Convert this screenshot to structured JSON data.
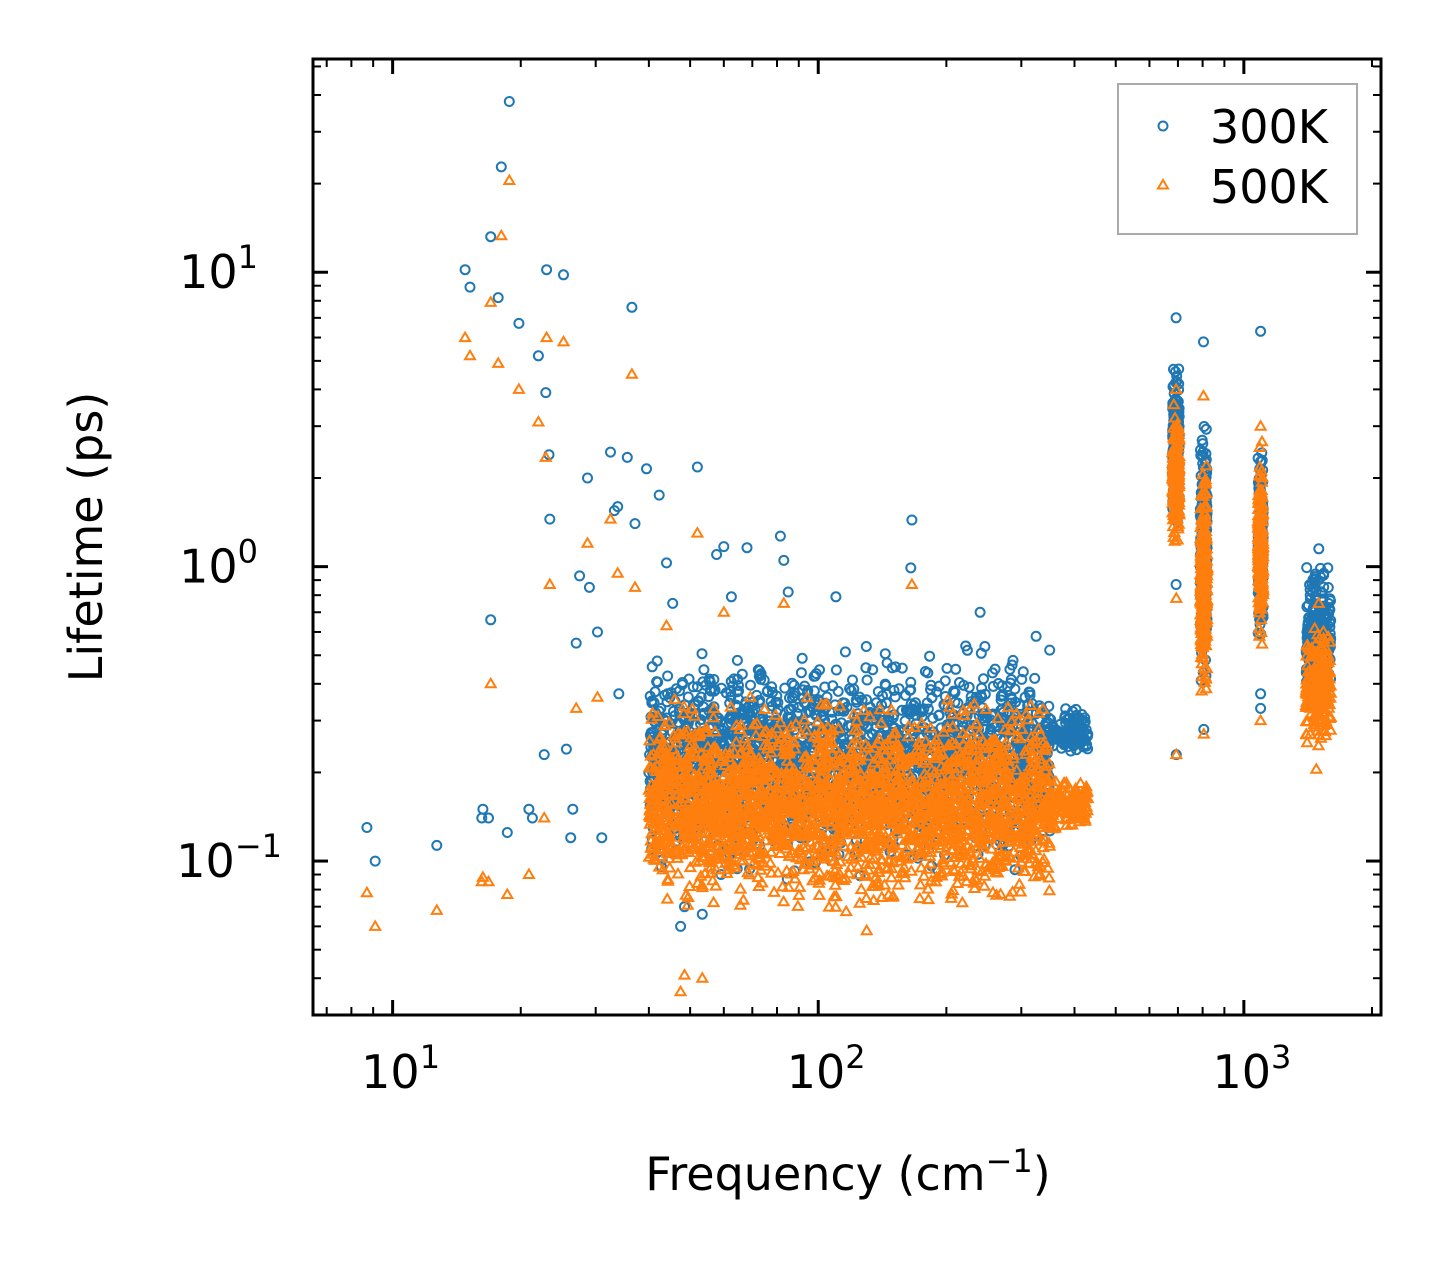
{
  "chart_data": {
    "type": "scatter",
    "title": "",
    "xlabel": "Frequency (cm",
    "xlabel_sup": "−1",
    "xlabel_suffix": ")",
    "ylabel": "Lifetime (ps)",
    "xscale": "log",
    "yscale": "log",
    "xlim": [
      6.5,
      2100
    ],
    "ylim": [
      0.03,
      53
    ],
    "x_ticks": [
      {
        "value": 10,
        "base": "10",
        "exp": "1"
      },
      {
        "value": 100,
        "base": "10",
        "exp": "2"
      },
      {
        "value": 1000,
        "base": "10",
        "exp": "3"
      }
    ],
    "y_ticks": [
      {
        "value": 0.1,
        "base": "10",
        "exp": "−1"
      },
      {
        "value": 1,
        "base": "10",
        "exp": "0"
      },
      {
        "value": 10,
        "base": "10",
        "exp": "1"
      }
    ],
    "legend_position": "top-right",
    "series": [
      {
        "name": "300K",
        "marker": "circle",
        "color": "#1f77b4",
        "points": [
          [
            8.7,
            0.13
          ],
          [
            9.1,
            0.1
          ],
          [
            12.7,
            0.113
          ],
          [
            14.8,
            10.2
          ],
          [
            15.2,
            8.9
          ],
          [
            16.2,
            0.14
          ],
          [
            16.3,
            0.15
          ],
          [
            16.8,
            0.14
          ],
          [
            17.0,
            0.66
          ],
          [
            17.0,
            13.2
          ],
          [
            17.7,
            8.2
          ],
          [
            18.0,
            22.8
          ],
          [
            18.6,
            0.125
          ],
          [
            18.8,
            38
          ],
          [
            19.8,
            6.7
          ],
          [
            20.9,
            0.15
          ],
          [
            21.3,
            0.14
          ],
          [
            22.0,
            5.2
          ],
          [
            22.7,
            0.23
          ],
          [
            22.9,
            3.9
          ],
          [
            23.0,
            10.2
          ],
          [
            23.3,
            2.4
          ],
          [
            23.4,
            1.45
          ],
          [
            25.2,
            9.8
          ],
          [
            25.6,
            0.24
          ],
          [
            26.2,
            0.12
          ],
          [
            26.5,
            0.15
          ],
          [
            27.0,
            0.55
          ],
          [
            27.5,
            0.93
          ],
          [
            28.7,
            2.0
          ],
          [
            29.0,
            0.85
          ],
          [
            30.3,
            0.6
          ],
          [
            31.0,
            0.12
          ],
          [
            32.5,
            2.45
          ],
          [
            33.2,
            1.55
          ],
          [
            33.8,
            1.6
          ],
          [
            34.0,
            0.37
          ],
          [
            35.6,
            2.35
          ],
          [
            36.5,
            7.6
          ],
          [
            37.1,
            1.4
          ],
          [
            39.5,
            2.15
          ],
          [
            42.3,
            1.75
          ],
          [
            44.0,
            1.03
          ],
          [
            45.5,
            0.75
          ],
          [
            47.5,
            0.06
          ],
          [
            48.5,
            0.07
          ],
          [
            52.0,
            2.18
          ],
          [
            53.4,
            0.066
          ],
          [
            57.7,
            1.1
          ],
          [
            60.0,
            1.17
          ],
          [
            62.5,
            0.79
          ],
          [
            68.0,
            1.16
          ],
          [
            81.5,
            1.27
          ],
          [
            83.0,
            1.05
          ],
          [
            85.0,
            0.82
          ],
          [
            110.0,
            0.79
          ],
          [
            165.0,
            0.99
          ],
          [
            166.0,
            1.44
          ],
          [
            240.0,
            0.7
          ],
          [
            325.0,
            0.58
          ],
          [
            693.0,
            7.0
          ],
          [
            693.0,
            0.87
          ],
          [
            694.0,
            0.23
          ],
          [
            804.0,
            5.8
          ],
          [
            805.0,
            0.28
          ],
          [
            1095.0,
            6.3
          ],
          [
            1095.0,
            0.37
          ],
          [
            1095.0,
            0.33
          ],
          [
            1500.0,
            1.15
          ]
        ]
      },
      {
        "name": "500K",
        "marker": "triangle",
        "color": "#ff7f0e",
        "points": [
          [
            8.7,
            0.078
          ],
          [
            9.1,
            0.06
          ],
          [
            12.7,
            0.068
          ],
          [
            14.8,
            6.0
          ],
          [
            15.2,
            5.2
          ],
          [
            16.2,
            0.085
          ],
          [
            16.3,
            0.088
          ],
          [
            16.8,
            0.085
          ],
          [
            17.0,
            0.4
          ],
          [
            17.0,
            7.9
          ],
          [
            17.7,
            4.9
          ],
          [
            18.0,
            13.3
          ],
          [
            18.6,
            0.077
          ],
          [
            18.8,
            20.5
          ],
          [
            19.8,
            4.0
          ],
          [
            20.9,
            0.09
          ],
          [
            22.0,
            3.1
          ],
          [
            22.7,
            0.14
          ],
          [
            22.9,
            2.35
          ],
          [
            23.0,
            6.0
          ],
          [
            23.4,
            0.87
          ],
          [
            25.2,
            5.8
          ],
          [
            27.0,
            0.33
          ],
          [
            28.7,
            1.2
          ],
          [
            30.3,
            0.36
          ],
          [
            32.5,
            1.45
          ],
          [
            33.8,
            0.95
          ],
          [
            36.5,
            4.5
          ],
          [
            37.1,
            0.85
          ],
          [
            44.0,
            0.63
          ],
          [
            47.5,
            0.036
          ],
          [
            48.5,
            0.041
          ],
          [
            52.0,
            1.3
          ],
          [
            53.4,
            0.04
          ],
          [
            60.0,
            0.7
          ],
          [
            83.0,
            0.75
          ],
          [
            130.0,
            0.058
          ],
          [
            166.0,
            0.87
          ],
          [
            693.0,
            4.0
          ],
          [
            694.0,
            0.78
          ],
          [
            694.0,
            0.23
          ],
          [
            804.0,
            3.8
          ],
          [
            805.0,
            0.27
          ],
          [
            1095.0,
            3.0
          ],
          [
            1095.0,
            0.3
          ],
          [
            1500.0,
            0.75
          ],
          [
            1480.0,
            0.205
          ]
        ]
      }
    ],
    "dense_regions": [
      {
        "series": "300K",
        "x_range": [
          40,
          350
        ],
        "y_range": [
          0.08,
          0.6
        ],
        "count": 2000
      },
      {
        "series": "300K",
        "x_range": [
          340,
          430
        ],
        "y_range": [
          0.22,
          0.34
        ],
        "count": 120
      },
      {
        "series": "500K",
        "x_range": [
          40,
          350
        ],
        "y_range": [
          0.06,
          0.4
        ],
        "count": 2400
      },
      {
        "series": "500K",
        "x_range": [
          340,
          430
        ],
        "y_range": [
          0.12,
          0.2
        ],
        "count": 140
      },
      {
        "series": "300K",
        "x_range": [
          680,
          705
        ],
        "y_range": [
          1.2,
          5.5
        ],
        "count": 220
      },
      {
        "series": "500K",
        "x_range": [
          680,
          705
        ],
        "y_range": [
          1.1,
          3.7
        ],
        "count": 220
      },
      {
        "series": "300K",
        "x_range": [
          790,
          820
        ],
        "y_range": [
          0.35,
          3.7
        ],
        "count": 240
      },
      {
        "series": "500K",
        "x_range": [
          790,
          820
        ],
        "y_range": [
          0.3,
          2.6
        ],
        "count": 240
      },
      {
        "series": "300K",
        "x_range": [
          1080,
          1110
        ],
        "y_range": [
          0.5,
          3.0
        ],
        "count": 200
      },
      {
        "series": "500K",
        "x_range": [
          1080,
          1110
        ],
        "y_range": [
          0.48,
          2.8
        ],
        "count": 200
      },
      {
        "series": "300K",
        "x_range": [
          1400,
          1600
        ],
        "y_range": [
          0.32,
          1.1
        ],
        "count": 240
      },
      {
        "series": "500K",
        "x_range": [
          1400,
          1600
        ],
        "y_range": [
          0.22,
          0.7
        ],
        "count": 240
      }
    ]
  }
}
